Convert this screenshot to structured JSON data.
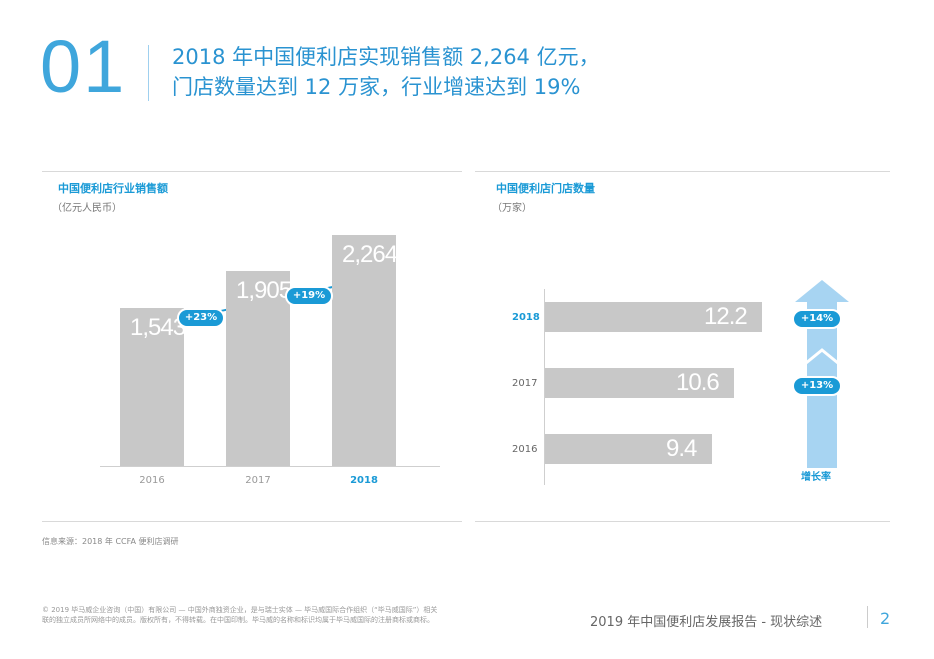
{
  "header": {
    "section_number": "01",
    "headline_line1": "2018 年中国便利店实现销售额 2,264 亿元，",
    "headline_line2": "门店数量达到 12 万家，行业增速达到 19%"
  },
  "left_panel": {
    "title": "中国便利店行业销售额",
    "subtitle": "（亿元人民币）",
    "growth_labels": [
      "+23%",
      "+19%"
    ]
  },
  "right_panel": {
    "title": "中国便利店门店数量",
    "subtitle": "（万家）",
    "growth_labels": [
      "+14%",
      "+13%"
    ],
    "growth_caption": "增长率"
  },
  "source_note": "信息来源：2018 年 CCFA 便利店调研",
  "footer": {
    "legal_line1": "© 2019 毕马威企业咨询（中国）有限公司 — 中国外商独资企业，是与瑞士实体 — 毕马威国际合作组织（“毕马威国际”）相关",
    "legal_line2": "联的独立成员所网络中的成员。版权所有，不得转载。在中国印制。毕马威的名称和标识均属于毕马威国际的注册商标或商标。",
    "report_title": "2019 年中国便利店发展报告 - 现状综述",
    "page_number": "2"
  },
  "colors": {
    "accent": "#1a9ad6",
    "bar": "#c8c8c8",
    "arrow": "#a7d4f2"
  },
  "chart_data": [
    {
      "type": "bar",
      "title": "中国便利店行业销售额",
      "ylabel": "（亿元人民币）",
      "categories": [
        "2016",
        "2017",
        "2018"
      ],
      "values": [
        1543,
        1905,
        2264
      ],
      "value_labels": [
        "1,543",
        "1,905",
        "2,264"
      ],
      "highlight": "2018",
      "annotations": [
        "+23%",
        "+19%"
      ]
    },
    {
      "type": "bar",
      "orientation": "horizontal",
      "title": "中国便利店门店数量",
      "ylabel": "（万家）",
      "categories": [
        "2018",
        "2017",
        "2016"
      ],
      "values": [
        12.2,
        10.6,
        9.4
      ],
      "value_labels": [
        "12.2",
        "10.6",
        "9.4"
      ],
      "highlight": "2018",
      "annotations": [
        "+14%",
        "+13%"
      ],
      "annotation_caption": "增长率"
    }
  ]
}
